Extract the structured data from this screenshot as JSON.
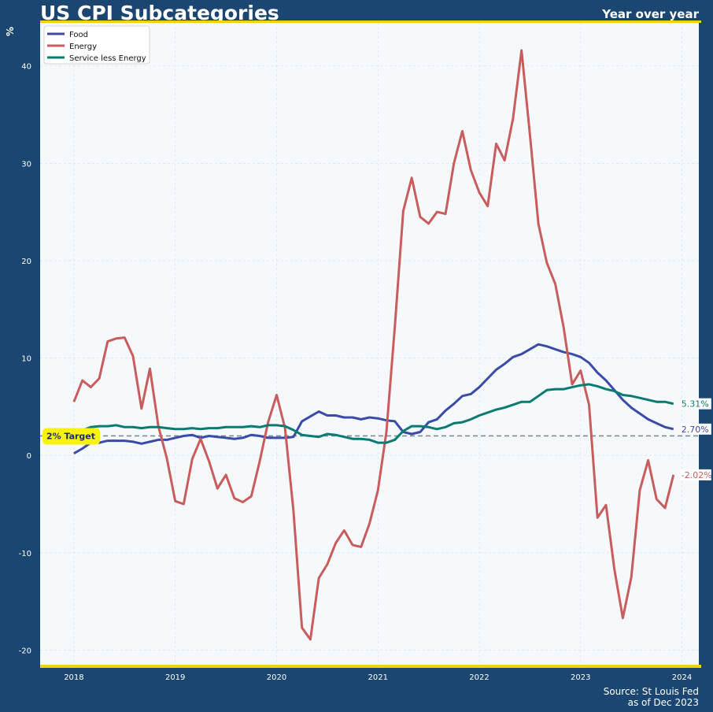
{
  "title": "US CPI Subcategories",
  "subtitle": "Year over year",
  "source_line1": "Source: St Louis Fed",
  "source_line2": "as of Dec 2023",
  "chart_data": {
    "type": "line",
    "ylabel": "%",
    "xlabel": "",
    "x_ticks": [
      "2018",
      "2019",
      "2020",
      "2021",
      "2022",
      "2023",
      "2024"
    ],
    "y_ticks": [
      "-20",
      "-10",
      "0",
      "10",
      "20",
      "30",
      "40"
    ],
    "xlim": [
      "2017-09",
      "2024-03"
    ],
    "ylim": [
      -21.5,
      44.5
    ],
    "grid": true,
    "legend_position": "top-left",
    "target_line": {
      "value": 2,
      "label": "2% Target"
    },
    "x": [
      "2018-01",
      "2018-02",
      "2018-03",
      "2018-04",
      "2018-05",
      "2018-06",
      "2018-07",
      "2018-08",
      "2018-09",
      "2018-10",
      "2018-11",
      "2018-12",
      "2019-01",
      "2019-02",
      "2019-03",
      "2019-04",
      "2019-05",
      "2019-06",
      "2019-07",
      "2019-08",
      "2019-09",
      "2019-10",
      "2019-11",
      "2019-12",
      "2020-01",
      "2020-02",
      "2020-03",
      "2020-04",
      "2020-05",
      "2020-06",
      "2020-07",
      "2020-08",
      "2020-09",
      "2020-10",
      "2020-11",
      "2020-12",
      "2021-01",
      "2021-02",
      "2021-03",
      "2021-04",
      "2021-05",
      "2021-06",
      "2021-07",
      "2021-08",
      "2021-09",
      "2021-10",
      "2021-11",
      "2021-12",
      "2022-01",
      "2022-02",
      "2022-03",
      "2022-04",
      "2022-05",
      "2022-06",
      "2022-07",
      "2022-08",
      "2022-09",
      "2022-10",
      "2022-11",
      "2022-12",
      "2023-01",
      "2023-02",
      "2023-03",
      "2023-04",
      "2023-05",
      "2023-06",
      "2023-07",
      "2023-08",
      "2023-09",
      "2023-10",
      "2023-11",
      "2023-12"
    ],
    "series": [
      {
        "name": "Food",
        "color": "#3b4ba8",
        "end_label": "2.70%",
        "values": [
          0.2,
          0.7,
          1.3,
          1.3,
          1.5,
          1.5,
          1.5,
          1.4,
          1.2,
          1.4,
          1.6,
          1.6,
          1.8,
          2.0,
          2.1,
          1.8,
          2.0,
          1.9,
          1.8,
          1.7,
          1.8,
          2.1,
          2.0,
          1.8,
          1.8,
          1.8,
          1.9,
          3.5,
          4.0,
          4.5,
          4.1,
          4.1,
          3.9,
          3.9,
          3.7,
          3.9,
          3.8,
          3.6,
          3.5,
          2.4,
          2.2,
          2.4,
          3.4,
          3.7,
          4.6,
          5.3,
          6.1,
          6.3,
          7.0,
          7.9,
          8.8,
          9.4,
          10.1,
          10.4,
          10.9,
          11.4,
          11.2,
          10.9,
          10.6,
          10.4,
          10.1,
          9.5,
          8.5,
          7.7,
          6.7,
          5.7,
          4.9,
          4.3,
          3.7,
          3.3,
          2.9,
          2.7
        ]
      },
      {
        "name": "Energy",
        "color": "#c95c5c",
        "end_label": "-2.02%",
        "values": [
          5.5,
          7.7,
          7.0,
          7.9,
          11.7,
          12.0,
          12.1,
          10.2,
          4.8,
          8.9,
          3.0,
          -0.3,
          -4.7,
          -5.0,
          -0.4,
          1.7,
          -0.6,
          -3.4,
          -2.0,
          -4.4,
          -4.8,
          -4.2,
          -0.6,
          3.4,
          6.2,
          2.8,
          -5.7,
          -17.7,
          -18.9,
          -12.6,
          -11.2,
          -9.0,
          -7.7,
          -9.2,
          -9.4,
          -7.0,
          -3.6,
          2.4,
          13.2,
          25.1,
          28.5,
          24.5,
          23.8,
          25.0,
          24.8,
          30.0,
          33.3,
          29.3,
          27.0,
          25.6,
          32.0,
          30.3,
          34.6,
          41.6,
          32.9,
          23.8,
          19.8,
          17.6,
          13.1,
          7.3,
          8.7,
          5.2,
          -6.4,
          -5.1,
          -11.7,
          -16.7,
          -12.5,
          -3.6,
          -0.5,
          -4.5,
          -5.4,
          -2.0
        ]
      },
      {
        "name": "Service less Energy",
        "color": "#0a7b72",
        "end_label": "5.31%",
        "values": [
          2.6,
          2.6,
          2.9,
          3.0,
          3.0,
          3.1,
          2.9,
          2.9,
          2.8,
          2.9,
          2.9,
          2.8,
          2.7,
          2.7,
          2.8,
          2.7,
          2.8,
          2.8,
          2.9,
          2.9,
          2.9,
          3.0,
          2.9,
          3.1,
          3.1,
          3.0,
          2.6,
          2.1,
          2.0,
          1.9,
          2.2,
          2.1,
          1.9,
          1.7,
          1.7,
          1.6,
          1.3,
          1.3,
          1.6,
          2.5,
          3.0,
          3.0,
          2.9,
          2.7,
          2.9,
          3.3,
          3.4,
          3.7,
          4.1,
          4.4,
          4.7,
          4.9,
          5.2,
          5.5,
          5.5,
          6.1,
          6.7,
          6.8,
          6.8,
          7.0,
          7.2,
          7.3,
          7.1,
          6.8,
          6.6,
          6.2,
          6.1,
          5.9,
          5.7,
          5.5,
          5.5,
          5.3
        ]
      }
    ]
  }
}
